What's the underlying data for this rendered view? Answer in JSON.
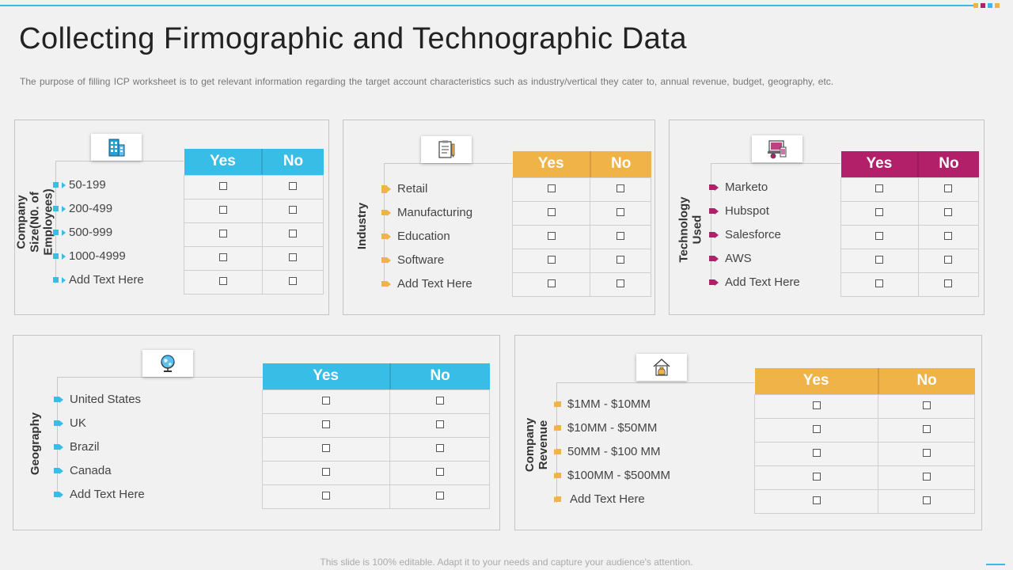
{
  "title": "Collecting Firmographic and Technographic Data",
  "subtitle": "The purpose of filling ICP worksheet is to get relevant information regarding the target account characteristics such as industry/vertical they cater to, annual revenue, budget, geography, etc.",
  "footer": "This slide is 100% editable. Adapt it to your needs and capture your audience's attention.",
  "colors": {
    "blue": "#38bde6",
    "orange": "#f0b348",
    "magenta": "#b3206a"
  },
  "panels": [
    {
      "label": "Company Size(N0. of Employees)",
      "icon": "building-icon",
      "items": [
        "50-199",
        "200-499",
        "500-999",
        "1000-4999",
        "Add Text Here"
      ],
      "yes": "Yes",
      "no": "No"
    },
    {
      "label": "Industry",
      "icon": "clipboard-icon",
      "items": [
        "Retail",
        "Manufacturing",
        "Education",
        "Software",
        "Add Text Here"
      ],
      "yes": "Yes",
      "no": "No"
    },
    {
      "label": "Technology Used",
      "icon": "tech-devices-icon",
      "items": [
        "Marketo",
        "Hubspot",
        "Salesforce",
        "AWS",
        "Add Text Here"
      ],
      "yes": "Yes",
      "no": "No"
    },
    {
      "label": "Geography",
      "icon": "globe-icon",
      "items": [
        "United States",
        "UK",
        "Brazil",
        "Canada",
        "Add Text Here"
      ],
      "yes": "Yes",
      "no": "No"
    },
    {
      "label": "Company Revenue",
      "icon": "money-bag-icon",
      "items": [
        "$1MM  -  $10MM",
        "$10MM  - $50MM",
        "50MM  - $100 MM",
        "$100MM  - $500MM",
        "Add Text Here"
      ],
      "yes": "Yes",
      "no": "No"
    }
  ]
}
